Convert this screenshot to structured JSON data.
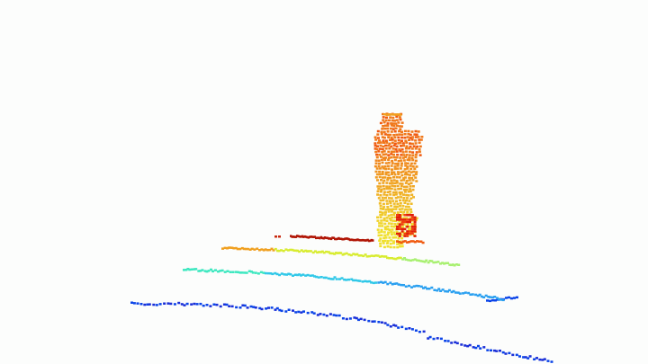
{
  "scene": {
    "background": "#fcfdfc",
    "colormap": [
      "#0a1fd0",
      "#1565e0",
      "#22b8e8",
      "#3ee8d0",
      "#a8f070",
      "#f0ea30",
      "#f8b020",
      "#f06a10",
      "#d81e08",
      "#9a0a04"
    ],
    "ground_rings": [
      {
        "name": "ring-near",
        "color": "#1a2fd8",
        "secondary": "#0b44e8"
      },
      {
        "name": "ring-mid",
        "color": "#30c8e8",
        "secondary": "#2aa0f0"
      },
      {
        "name": "ring-far",
        "color": "#d8ec30",
        "secondary": "#f0a020"
      },
      {
        "name": "ring-farthest",
        "color": "#b01404",
        "secondary": "#c82a10"
      }
    ],
    "figure": {
      "top_color": "#f0781a",
      "bottom_color": "#f0e030",
      "accent": "#e01e0a"
    }
  }
}
